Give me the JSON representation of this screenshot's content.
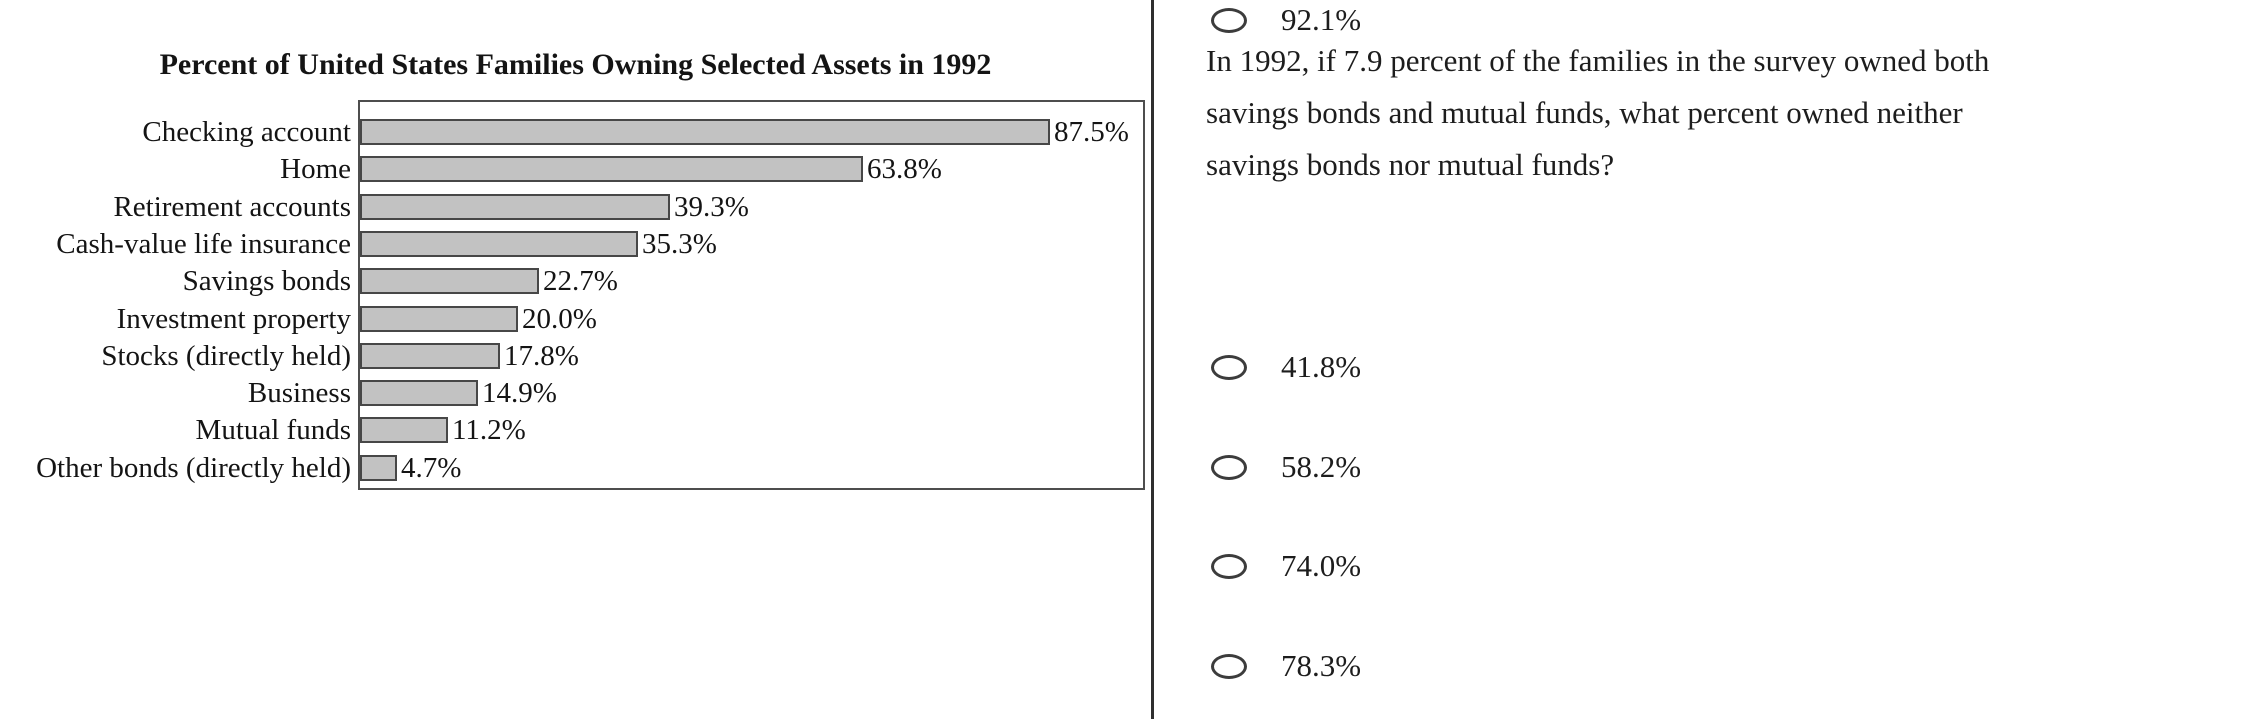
{
  "chart_data": {
    "type": "bar",
    "orientation": "horizontal",
    "title": "Percent of United States Families Owning Selected Assets in 1992",
    "categories": [
      "Checking account",
      "Home",
      "Retirement accounts",
      "Cash-value life insurance",
      "Savings bonds",
      "Investment property",
      "Stocks (directly held)",
      "Business",
      "Mutual funds",
      "Other bonds (directly held)"
    ],
    "values": [
      87.5,
      63.8,
      39.3,
      35.3,
      22.7,
      20.0,
      17.8,
      14.9,
      11.2,
      4.7
    ],
    "value_labels": [
      "87.5%",
      "63.8%",
      "39.3%",
      "35.3%",
      "22.7%",
      "20.0%",
      "17.8%",
      "14.9%",
      "11.2%",
      "4.7%"
    ],
    "xlabel": "",
    "ylabel": "",
    "xlim": [
      0,
      98.5
    ],
    "grid": false,
    "legend": false,
    "bar_color": "#c2c2c2",
    "bar_border_color": "#474747"
  },
  "question": {
    "lines": [
      "In 1992, if 7.9 percent of the families in the survey owned both",
      "savings bonds and mutual funds, what percent owned neither",
      "savings bonds nor mutual funds?"
    ],
    "text": "In 1992, if 7.9 percent of the families in the survey owned both savings bonds and mutual funds, what percent owned neither savings bonds nor mutual funds?"
  },
  "options": [
    "41.8%",
    "58.2%",
    "74.0%",
    "78.3%",
    "92.1%"
  ],
  "colors": {
    "divider": "#2f2f2f",
    "text": "#1d1d1d"
  }
}
